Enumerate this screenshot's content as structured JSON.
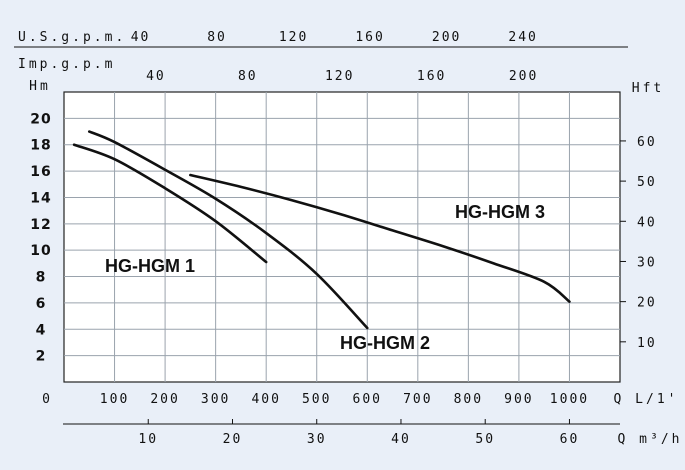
{
  "chart_data": {
    "type": "line",
    "x_primary_label": "Q L/1'",
    "x_primary_ticks": [
      0,
      100,
      200,
      300,
      400,
      500,
      600,
      700,
      800,
      900,
      1000
    ],
    "x_primary_range": [
      0,
      1100
    ],
    "x_secondary_label": "Q m³/h",
    "x_secondary_ticks": [
      10,
      20,
      30,
      40,
      50,
      60
    ],
    "x_top1_label": "U.S.g.p.m.",
    "x_top1_ticks": [
      40,
      80,
      120,
      160,
      200,
      240
    ],
    "x_top2_label": "Imp.g.p.m",
    "x_top2_ticks": [
      40,
      80,
      120,
      160,
      200
    ],
    "y_left_label": "Hm",
    "y_left_ticks": [
      2,
      4,
      6,
      8,
      10,
      12,
      14,
      16,
      18,
      20
    ],
    "y_left_range": [
      0,
      22
    ],
    "y_right_label": "Hft",
    "y_right_ticks": [
      10,
      20,
      30,
      40,
      50,
      60
    ],
    "grid": true,
    "series": [
      {
        "name": "HG-HGM 1",
        "x": [
          20,
          100,
          200,
          300,
          400
        ],
        "y": [
          18,
          16.9,
          14.7,
          12.2,
          9.1
        ]
      },
      {
        "name": "HG-HGM 2",
        "x": [
          50,
          100,
          200,
          300,
          400,
          500,
          600
        ],
        "y": [
          19,
          18.2,
          16.1,
          13.9,
          11.3,
          8.2,
          4.1
        ]
      },
      {
        "name": "HG-HGM 3",
        "x": [
          250,
          350,
          450,
          550,
          650,
          750,
          850,
          950,
          1000
        ],
        "y": [
          15.7,
          14.8,
          13.8,
          12.7,
          11.5,
          10.3,
          9.0,
          7.6,
          6.1
        ]
      }
    ]
  }
}
